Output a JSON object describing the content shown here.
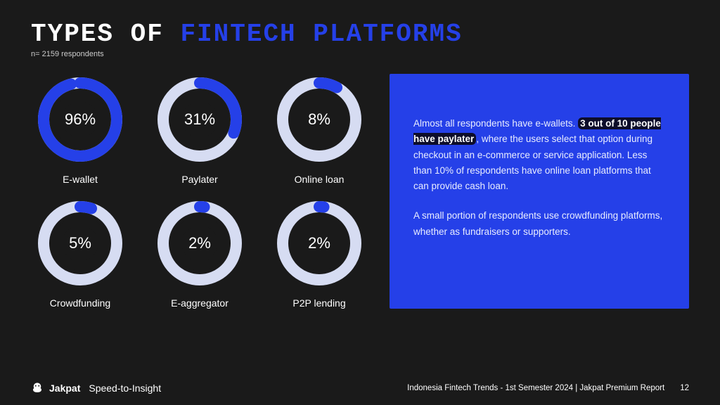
{
  "colors": {
    "background": "#1a1a1a",
    "accent": "#2540e8",
    "track": "#d6dcf2",
    "progress": "#2540e8",
    "inner_ring": "#1a1a1a",
    "text": "#ffffff",
    "highlight_bg": "#0d0d2a"
  },
  "header": {
    "title_prefix": "TYPES OF ",
    "title_accent": "FINTECH PLATFORMS",
    "subtitle": "n= 2159 respondents"
  },
  "donut": {
    "size": 130,
    "outer_r": 60,
    "ring_width": 16,
    "inner_ring_r": 32,
    "inner_ring_width": 13,
    "start_angle_deg": -90,
    "pct_fontsize": 22,
    "label_fontsize": 14
  },
  "items": [
    {
      "label": "E-wallet",
      "value": 96
    },
    {
      "label": "Paylater",
      "value": 31
    },
    {
      "label": "Online loan",
      "value": 8
    },
    {
      "label": "Crowdfunding",
      "value": 5
    },
    {
      "label": "E-aggregator",
      "value": 2
    },
    {
      "label": "P2P lending",
      "value": 2
    }
  ],
  "info": {
    "p1_before": "Almost all respondents have e-wallets. ",
    "p1_hl": "3 out of 10 people have paylater",
    "p1_after": ", where the users select that option during checkout in an e-commerce or service application. Less than 10% of respondents have online loan platforms that can provide cash loan.",
    "p2": "A small portion of respondents use crowdfunding platforms, whether as fundraisers or supporters."
  },
  "footer": {
    "brand": "Jakpat",
    "brand_sub": "Speed-to-Insight",
    "report": "Indonesia Fintech Trends - 1st Semester 2024 | Jakpat Premium Report",
    "page": "12"
  }
}
